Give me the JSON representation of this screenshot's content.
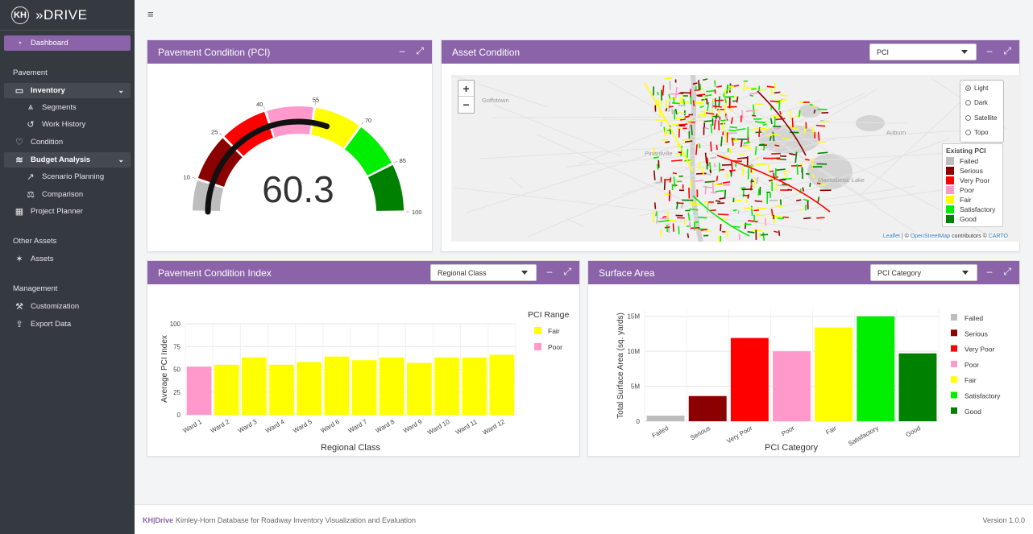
{
  "app": {
    "name": "»DRIVE",
    "logo_badge": "KH"
  },
  "sidebar": {
    "dashboard": "Dashboard",
    "section_pavement": "Pavement",
    "inventory": "Inventory",
    "segments": "Segments",
    "work_history": "Work History",
    "condition": "Condition",
    "budget_analysis": "Budget Analysis",
    "scenario_planning": "Scenario Planning",
    "comparison": "Comparison",
    "project_planner": "Project Planner",
    "section_other": "Other Assets",
    "assets": "Assets",
    "section_management": "Management",
    "customization": "Customization",
    "export_data": "Export Data"
  },
  "panels": {
    "pci_gauge": {
      "title": "Pavement Condition (PCI)",
      "value": 60.3,
      "value_label": "60.3",
      "ticks": [
        "10",
        "25",
        "40",
        "55",
        "70",
        "85",
        "100"
      ],
      "bands": [
        {
          "from": 0,
          "to": 10,
          "color": "#bdbdbd"
        },
        {
          "from": 10,
          "to": 25,
          "color": "#8b0000"
        },
        {
          "from": 25,
          "to": 40,
          "color": "#ff0000"
        },
        {
          "from": 40,
          "to": 55,
          "color": "#ff99cc"
        },
        {
          "from": 55,
          "to": 70,
          "color": "#ffff00"
        },
        {
          "from": 70,
          "to": 85,
          "color": "#00ee00"
        },
        {
          "from": 85,
          "to": 100,
          "color": "#008000"
        }
      ]
    },
    "asset_condition": {
      "title": "Asset Condition",
      "select_value": "PCI",
      "zoom_in": "+",
      "zoom_out": "−",
      "layers": [
        "Light",
        "Dark",
        "Satellite",
        "Topo"
      ],
      "selected_layer": "Light",
      "places": [
        "Goffstown",
        "Pinardville",
        "Auburn",
        "Massabesic Lake"
      ],
      "legend_title": "Existing PCI",
      "legend": [
        {
          "label": "Failed",
          "color": "#bdbdbd"
        },
        {
          "label": "Serious",
          "color": "#8b0000"
        },
        {
          "label": "Very Poor",
          "color": "#ff0000"
        },
        {
          "label": "Poor",
          "color": "#ff99cc"
        },
        {
          "label": "Fair",
          "color": "#ffff00"
        },
        {
          "label": "Satisfactory",
          "color": "#00ee00"
        },
        {
          "label": "Good",
          "color": "#008000"
        }
      ],
      "attribution": {
        "leaflet": "Leaflet",
        "sep": " | © ",
        "osm": "OpenStreetMap",
        "contrib": " contributors © ",
        "carto": "CARTO"
      }
    },
    "pci_index": {
      "title": "Pavement Condition Index",
      "select_value": "Regional Class"
    },
    "surface_area": {
      "title": "Surface Area",
      "select_value": "PCI Category"
    }
  },
  "chart_data": [
    {
      "type": "bar",
      "id": "pci_by_ward",
      "categories": [
        "Ward 1",
        "Ward 2",
        "Ward 3",
        "Ward 4",
        "Ward 5",
        "Ward 6",
        "Ward 7",
        "Ward 8",
        "Ward 9",
        "Ward 10",
        "Ward 11",
        "Ward 12"
      ],
      "values": [
        53,
        55,
        63,
        55,
        58,
        64,
        60,
        63,
        57,
        63,
        63,
        66
      ],
      "bar_colors": [
        "#ff99cc",
        "#ffff00",
        "#ffff00",
        "#ffff00",
        "#ffff00",
        "#ffff00",
        "#ffff00",
        "#ffff00",
        "#ffff00",
        "#ffff00",
        "#ffff00",
        "#ffff00"
      ],
      "xlabel": "Regional Class",
      "ylabel": "Average PCI Index",
      "ylim": [
        0,
        100
      ],
      "yticks": [
        "0",
        "25",
        "50",
        "75",
        "100"
      ],
      "legend_title": "PCI Range",
      "legend": [
        {
          "label": "Fair",
          "color": "#ffff00"
        },
        {
          "label": "Poor",
          "color": "#ff99cc"
        }
      ],
      "grid": true
    },
    {
      "type": "bar",
      "id": "surface_area",
      "categories": [
        "Failed",
        "Serious",
        "Very Poor",
        "Poor",
        "Fair",
        "Satisfactory",
        "Good"
      ],
      "values": [
        0.8,
        3.6,
        11.9,
        10.0,
        13.4,
        15.0,
        9.7
      ],
      "bar_colors": [
        "#bdbdbd",
        "#8b0000",
        "#ff0000",
        "#ff99cc",
        "#ffff00",
        "#00ee00",
        "#008000"
      ],
      "xlabel": "PCI Category",
      "ylabel": "Total Surface Area (sq. yards)",
      "ylim": [
        0,
        16
      ],
      "yticks": [
        "0",
        "5M",
        "10M",
        "15M"
      ],
      "legend": [
        {
          "label": "Failed",
          "color": "#bdbdbd"
        },
        {
          "label": "Serious",
          "color": "#8b0000"
        },
        {
          "label": "Very Poor",
          "color": "#ff0000"
        },
        {
          "label": "Poor",
          "color": "#ff99cc"
        },
        {
          "label": "Fair",
          "color": "#ffff00"
        },
        {
          "label": "Satisfactory",
          "color": "#00ee00"
        },
        {
          "label": "Good",
          "color": "#008000"
        }
      ],
      "grid": true
    }
  ],
  "footer": {
    "brand_kh": "KH",
    "brand_sep": "|",
    "brand_drive": "Drive",
    "description": "Kimley-Horn Database for Roadway Inventory Visualization and Evaluation",
    "version": "Version 1.0.0"
  }
}
